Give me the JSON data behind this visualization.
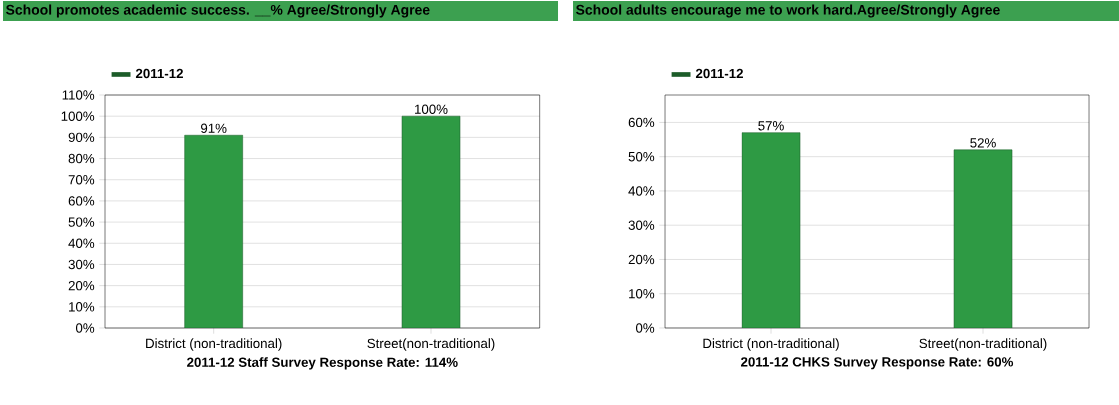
{
  "chart_data": [
    {
      "type": "bar",
      "title": "School promotes academic success. __% Agree/Strongly Agree",
      "xlabel": "2011-12 Staff Survey Response Rate: 114%",
      "categories": [
        "District (non-traditional)",
        "Street(non-traditional)"
      ],
      "series": [
        {
          "name": "2011-12",
          "color": "#2e9a44",
          "values": [
            91,
            100
          ],
          "value_labels": [
            "91%",
            "100%"
          ]
        }
      ],
      "ylim": [
        0,
        110
      ],
      "yticks": [
        {
          "value": 0,
          "label": "0%"
        },
        {
          "value": 10,
          "label": "10%"
        },
        {
          "value": 20,
          "label": "20%"
        },
        {
          "value": 30,
          "label": "30%"
        },
        {
          "value": 40,
          "label": "40%"
        },
        {
          "value": 50,
          "label": "50%"
        },
        {
          "value": 60,
          "label": "60%"
        },
        {
          "value": 70,
          "label": "70%"
        },
        {
          "value": 80,
          "label": "80%"
        },
        {
          "value": 90,
          "label": "90%"
        },
        {
          "value": 100,
          "label": "100%"
        },
        {
          "value": 110,
          "label": "110%"
        }
      ],
      "grid": "y",
      "legend": "top left"
    },
    {
      "type": "bar",
      "title": "School adults encourage me to work hard.Agree/Strongly Agree",
      "xlabel": "2011-12 CHKS Survey Response Rate: 60%",
      "categories": [
        "District (non-traditional)",
        "Street(non-traditional)"
      ],
      "series": [
        {
          "name": "2011-12",
          "color": "#2e9a44",
          "values": [
            57,
            52
          ],
          "value_labels": [
            "57%",
            "52%"
          ]
        }
      ],
      "ylim": [
        0,
        68
      ],
      "yticks": [
        {
          "value": 0,
          "label": "0%"
        },
        {
          "value": 10,
          "label": "10%"
        },
        {
          "value": 20,
          "label": "20%"
        },
        {
          "value": 30,
          "label": "30%"
        },
        {
          "value": 40,
          "label": "40%"
        },
        {
          "value": 50,
          "label": "50%"
        },
        {
          "value": 60,
          "label": "60%"
        }
      ],
      "grid": "y",
      "legend": "top left"
    }
  ]
}
